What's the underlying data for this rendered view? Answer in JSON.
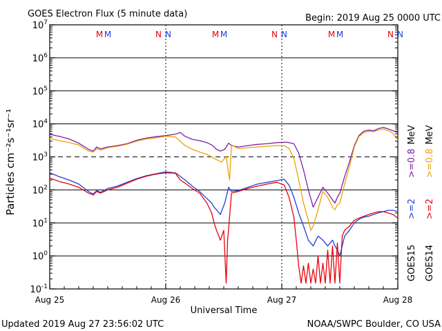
{
  "chart_data": {
    "type": "line",
    "title": "GOES Electron Flux (5 minute data)",
    "begin_label": "Begin: 2019 Aug 25 0000 UTC",
    "xlabel": "Universal Time",
    "ylabel": "Particles cm⁻²s⁻¹sr⁻¹",
    "y_scale": "log",
    "ylim": [
      0.1,
      10000000
    ],
    "y_ticks": [
      {
        "base": "10",
        "exp": "7"
      },
      {
        "base": "10",
        "exp": "6"
      },
      {
        "base": "10",
        "exp": "5"
      },
      {
        "base": "10",
        "exp": "4"
      },
      {
        "base": "10",
        "exp": "3"
      },
      {
        "base": "10",
        "exp": "2"
      },
      {
        "base": "10",
        "exp": "1"
      },
      {
        "base": "10",
        "exp": "0"
      },
      {
        "base": "10",
        "exp": "-1"
      }
    ],
    "xlim": [
      0,
      72
    ],
    "x_unit": "hours since 2019 Aug 25 0000 UTC",
    "x_ticks": [
      "Aug 25",
      "Aug 26",
      "Aug 27",
      "Aug 28"
    ],
    "threshold_line": 1000,
    "markers": [
      {
        "label": "M",
        "x": 10.3,
        "color": "#e8000b"
      },
      {
        "label": "M",
        "x": 12.0,
        "color": "#1f3fd6"
      },
      {
        "label": "N",
        "x": 22.5,
        "color": "#e8000b"
      },
      {
        "label": "N",
        "x": 24.5,
        "color": "#1f3fd6"
      },
      {
        "label": "M",
        "x": 34.3,
        "color": "#e8000b"
      },
      {
        "label": "M",
        "x": 36.0,
        "color": "#1f3fd6"
      },
      {
        "label": "N",
        "x": 46.5,
        "color": "#e8000b"
      },
      {
        "label": "N",
        "x": 48.5,
        "color": "#1f3fd6"
      },
      {
        "label": "M",
        "x": 58.3,
        "color": "#e8000b"
      },
      {
        "label": "M",
        "x": 60.0,
        "color": "#1f3fd6"
      },
      {
        "label": "N",
        "x": 70.5,
        "color": "#e8000b"
      },
      {
        "label": "N",
        "x": 72.5,
        "color": "#1f3fd6"
      }
    ],
    "legend": {
      "goes15": "GOES15",
      "goes14": "GOES14",
      "items": [
        {
          "satellite": "GOES15",
          "label": ">=2",
          "unit": "",
          "color": "#1f3fd6"
        },
        {
          "satellite": "GOES15",
          "label": ">=0.8",
          "unit": "MeV",
          "color": "#7a1fa2"
        },
        {
          "satellite": "GOES14",
          "label": ">=2",
          "unit": "",
          "color": "#e8000b"
        },
        {
          "satellite": "GOES14",
          "label": ">=0.8",
          "unit": "MeV",
          "color": "#f0a000"
        }
      ]
    },
    "series": [
      {
        "name": "GOES15 >=0.8 MeV",
        "color": "#7a1fa2",
        "points": [
          [
            0,
            4800
          ],
          [
            2,
            4200
          ],
          [
            4,
            3500
          ],
          [
            6,
            2600
          ],
          [
            8,
            1700
          ],
          [
            9,
            1500
          ],
          [
            9.7,
            2000
          ],
          [
            10.5,
            1750
          ],
          [
            12,
            2000
          ],
          [
            14,
            2200
          ],
          [
            16,
            2500
          ],
          [
            18,
            3200
          ],
          [
            20,
            3700
          ],
          [
            22,
            4100
          ],
          [
            24,
            4400
          ],
          [
            26,
            4900
          ],
          [
            27,
            5500
          ],
          [
            28,
            4200
          ],
          [
            29.5,
            3400
          ],
          [
            31,
            3100
          ],
          [
            32.5,
            2700
          ],
          [
            33.5,
            2300
          ],
          [
            34.5,
            1700
          ],
          [
            35.3,
            1500
          ],
          [
            36.2,
            1700
          ],
          [
            37,
            2600
          ],
          [
            37.6,
            2200
          ],
          [
            39,
            2000
          ],
          [
            41,
            2200
          ],
          [
            43,
            2400
          ],
          [
            45,
            2500
          ],
          [
            47,
            2700
          ],
          [
            49,
            2800
          ],
          [
            50.5,
            2500
          ],
          [
            51.5,
            1300
          ],
          [
            52.5,
            400
          ],
          [
            53.5,
            100
          ],
          [
            54.5,
            30
          ],
          [
            55.5,
            60
          ],
          [
            56.5,
            120
          ],
          [
            57.5,
            80
          ],
          [
            58.5,
            50
          ],
          [
            59,
            40
          ],
          [
            59.5,
            60
          ],
          [
            60,
            80
          ],
          [
            61,
            250
          ],
          [
            62,
            700
          ],
          [
            63,
            2200
          ],
          [
            64,
            4500
          ],
          [
            65,
            6000
          ],
          [
            66,
            6500
          ],
          [
            67,
            6200
          ],
          [
            68,
            7200
          ],
          [
            69,
            7800
          ],
          [
            70,
            7000
          ],
          [
            71,
            6200
          ],
          [
            72,
            5500
          ]
        ]
      },
      {
        "name": "GOES14 >=0.8 MeV",
        "color": "#f0a000",
        "points": [
          [
            0,
            3600
          ],
          [
            2,
            3100
          ],
          [
            4,
            2700
          ],
          [
            6,
            2300
          ],
          [
            8,
            1500
          ],
          [
            9,
            1400
          ],
          [
            9.7,
            1800
          ],
          [
            10.5,
            1600
          ],
          [
            12,
            1900
          ],
          [
            14,
            2100
          ],
          [
            16,
            2400
          ],
          [
            18,
            3000
          ],
          [
            20,
            3500
          ],
          [
            22,
            3800
          ],
          [
            24,
            4200
          ],
          [
            26,
            4000
          ],
          [
            28,
            2200
          ],
          [
            29.5,
            1700
          ],
          [
            31,
            1400
          ],
          [
            32.5,
            1200
          ],
          [
            34,
            900
          ],
          [
            35.5,
            700
          ],
          [
            36.5,
            1000
          ],
          [
            37.2,
            200
          ],
          [
            37.6,
            2300
          ],
          [
            39,
            1800
          ],
          [
            41,
            1900
          ],
          [
            43,
            2000
          ],
          [
            45,
            2100
          ],
          [
            47,
            2200
          ],
          [
            48.5,
            2200
          ],
          [
            49.5,
            1800
          ],
          [
            50.5,
            900
          ],
          [
            51.5,
            200
          ],
          [
            52.5,
            40
          ],
          [
            53.5,
            12
          ],
          [
            54,
            6
          ],
          [
            54.5,
            8
          ],
          [
            55.5,
            25
          ],
          [
            56.5,
            90
          ],
          [
            57.5,
            60
          ],
          [
            58.5,
            30
          ],
          [
            59,
            25
          ],
          [
            59.5,
            35
          ],
          [
            60,
            40
          ],
          [
            61,
            150
          ],
          [
            62,
            500
          ],
          [
            63,
            2000
          ],
          [
            64,
            4200
          ],
          [
            65,
            5500
          ],
          [
            66,
            6000
          ],
          [
            67,
            5800
          ],
          [
            68,
            6500
          ],
          [
            69,
            7000
          ],
          [
            70,
            6200
          ],
          [
            71,
            5200
          ],
          [
            72,
            3200
          ]
        ]
      },
      {
        "name": "GOES15 >=2",
        "color": "#1f3fd6",
        "points": [
          [
            0,
            330
          ],
          [
            2,
            250
          ],
          [
            4,
            200
          ],
          [
            6,
            150
          ],
          [
            8,
            90
          ],
          [
            9,
            75
          ],
          [
            9.7,
            95
          ],
          [
            10.5,
            85
          ],
          [
            12,
            110
          ],
          [
            14,
            130
          ],
          [
            16,
            170
          ],
          [
            18,
            220
          ],
          [
            20,
            270
          ],
          [
            22,
            310
          ],
          [
            24,
            350
          ],
          [
            26,
            330
          ],
          [
            28,
            200
          ],
          [
            29.5,
            130
          ],
          [
            31,
            90
          ],
          [
            32.5,
            55
          ],
          [
            33.5,
            40
          ],
          [
            34,
            30
          ],
          [
            34.5,
            25
          ],
          [
            35.3,
            18
          ],
          [
            36.2,
            40
          ],
          [
            37,
            120
          ],
          [
            37.6,
            90
          ],
          [
            39,
            95
          ],
          [
            41,
            120
          ],
          [
            43,
            150
          ],
          [
            45,
            170
          ],
          [
            47,
            190
          ],
          [
            48.5,
            210
          ],
          [
            49.5,
            140
          ],
          [
            50.5,
            60
          ],
          [
            51.5,
            20
          ],
          [
            52.5,
            8
          ],
          [
            53.5,
            3
          ],
          [
            54.5,
            2
          ],
          [
            55.5,
            4
          ],
          [
            56.5,
            3
          ],
          [
            57.5,
            2
          ],
          [
            58.5,
            3
          ],
          [
            59,
            2
          ],
          [
            59.5,
            1.5
          ],
          [
            60,
            1
          ],
          [
            60.5,
            2
          ],
          [
            61,
            4
          ],
          [
            62,
            6
          ],
          [
            63,
            10
          ],
          [
            64,
            13
          ],
          [
            65,
            15
          ],
          [
            66,
            16
          ],
          [
            67,
            18
          ],
          [
            68,
            20
          ],
          [
            69,
            22
          ],
          [
            70,
            24
          ],
          [
            71,
            24
          ],
          [
            72,
            22
          ]
        ]
      },
      {
        "name": "GOES14 >=2",
        "color": "#e8000b",
        "points": [
          [
            0,
            230
          ],
          [
            2,
            180
          ],
          [
            4,
            150
          ],
          [
            6,
            120
          ],
          [
            8,
            80
          ],
          [
            9,
            70
          ],
          [
            9.7,
            90
          ],
          [
            10.5,
            80
          ],
          [
            12,
            100
          ],
          [
            14,
            120
          ],
          [
            16,
            160
          ],
          [
            18,
            210
          ],
          [
            20,
            260
          ],
          [
            22,
            300
          ],
          [
            24,
            330
          ],
          [
            26,
            320
          ],
          [
            27,
            200
          ],
          [
            28,
            160
          ],
          [
            29.5,
            110
          ],
          [
            31,
            80
          ],
          [
            32.5,
            40
          ],
          [
            33.5,
            20
          ],
          [
            34,
            10
          ],
          [
            34.5,
            6
          ],
          [
            35.3,
            3
          ],
          [
            36,
            6
          ],
          [
            36.5,
            0.15
          ],
          [
            36.8,
            3
          ],
          [
            37.2,
            15
          ],
          [
            37.6,
            80
          ],
          [
            39,
            90
          ],
          [
            41,
            110
          ],
          [
            43,
            130
          ],
          [
            45,
            150
          ],
          [
            47,
            170
          ],
          [
            48.5,
            140
          ],
          [
            49.5,
            60
          ],
          [
            50.5,
            15
          ],
          [
            51,
            3
          ],
          [
            51.5,
            0.5
          ],
          [
            52,
            0.15
          ],
          [
            52.5,
            0.5
          ],
          [
            53,
            0.15
          ],
          [
            53.5,
            0.6
          ],
          [
            54,
            0.15
          ],
          [
            54.5,
            0.4
          ],
          [
            55,
            0.15
          ],
          [
            55.5,
            1
          ],
          [
            56,
            0.15
          ],
          [
            56.5,
            0.6
          ],
          [
            57,
            0.15
          ],
          [
            57.5,
            1.5
          ],
          [
            58,
            0.15
          ],
          [
            58.5,
            2
          ],
          [
            59,
            0.15
          ],
          [
            59.5,
            2.5
          ],
          [
            60,
            0.15
          ],
          [
            60.5,
            4
          ],
          [
            61,
            6
          ],
          [
            62,
            8
          ],
          [
            63,
            12
          ],
          [
            64,
            14
          ],
          [
            65,
            16
          ],
          [
            66,
            18
          ],
          [
            67,
            20
          ],
          [
            68,
            22
          ],
          [
            69,
            22
          ],
          [
            70,
            20
          ],
          [
            71,
            18
          ],
          [
            72,
            14
          ]
        ]
      }
    ]
  },
  "footer": {
    "updated": "Updated 2019 Aug 27 23:56:02 UTC",
    "credit": "NOAA/SWPC Boulder, CO USA"
  }
}
